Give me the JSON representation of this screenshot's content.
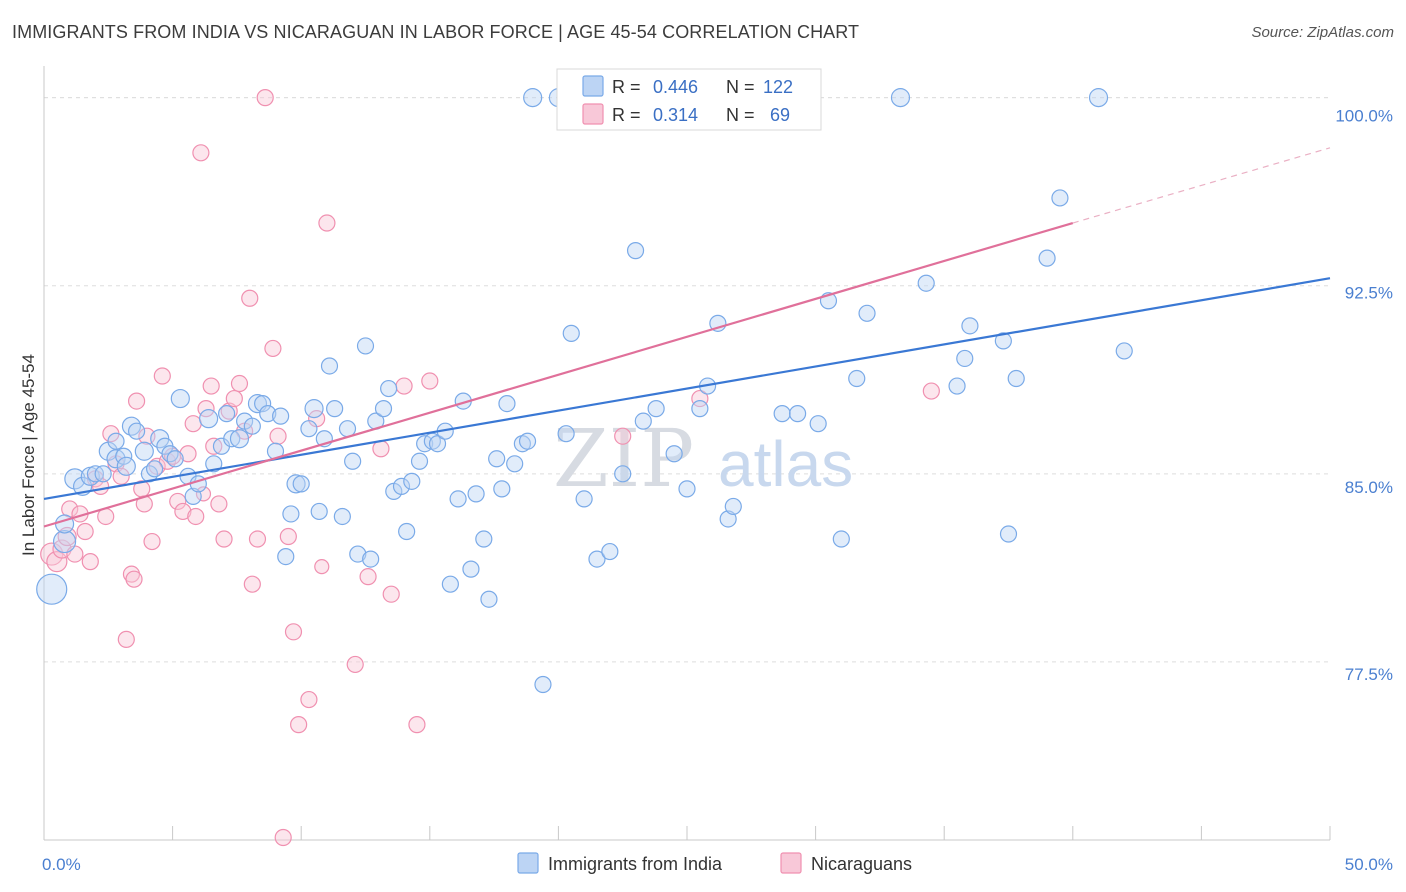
{
  "title": "IMMIGRANTS FROM INDIA VS NICARAGUAN IN LABOR FORCE | AGE 45-54 CORRELATION CHART",
  "source": "Source: ZipAtlas.com",
  "watermark": {
    "zip": "ZIP",
    "atlas": "atlas"
  },
  "legend": {
    "r_label": "R =",
    "n_label": "N =",
    "india": {
      "r": "0.446",
      "n": "122",
      "color": "#7aaae8",
      "fill": "#bcd4f4"
    },
    "nicaragua": {
      "r": "0.314",
      "n": "69",
      "color": "#f090b0",
      "fill": "#f8c8d8"
    }
  },
  "chart_data": {
    "type": "scatter",
    "xlabel": "",
    "ylabel": "In Labor Force | Age 45-54",
    "xlim": [
      0,
      50
    ],
    "ylim": [
      70.4,
      101.5
    ],
    "x_tick_labels": [
      "0.0%",
      "50.0%"
    ],
    "y_ticks": [
      77.5,
      85.0,
      92.5,
      100.0
    ],
    "y_tick_labels": [
      "77.5%",
      "85.0%",
      "92.5%",
      "100.0%"
    ],
    "legend_placement": "top-center",
    "series": [
      {
        "name": "Immigrants from India",
        "color": "#3a78d4",
        "trend": {
          "x0": 0,
          "y0": 84.0,
          "x1": 50,
          "y1": 92.8
        },
        "points": [
          [
            0.3,
            80.4,
            14
          ],
          [
            0.8,
            82.3,
            10
          ],
          [
            0.8,
            83.0,
            8
          ],
          [
            1.2,
            84.8,
            9
          ],
          [
            1.5,
            84.5,
            8
          ],
          [
            1.8,
            84.9,
            8
          ],
          [
            2.0,
            85.0,
            7
          ],
          [
            2.3,
            85.0,
            7
          ],
          [
            2.5,
            85.9,
            8
          ],
          [
            2.8,
            85.6,
            8
          ],
          [
            2.8,
            86.3,
            7
          ],
          [
            3.1,
            85.7,
            7
          ],
          [
            3.2,
            85.3,
            8
          ],
          [
            3.4,
            86.9,
            8
          ],
          [
            3.6,
            86.7,
            7
          ],
          [
            3.9,
            85.9,
            8
          ],
          [
            4.1,
            85.0,
            7
          ],
          [
            4.3,
            85.2,
            7
          ],
          [
            4.5,
            86.4,
            8
          ],
          [
            4.7,
            86.1,
            7
          ],
          [
            4.9,
            85.8,
            7
          ],
          [
            5.1,
            85.6,
            7
          ],
          [
            5.3,
            88.0,
            8
          ],
          [
            5.6,
            84.9,
            7
          ],
          [
            5.8,
            84.1,
            7
          ],
          [
            6.0,
            84.6,
            7
          ],
          [
            6.4,
            87.2,
            8
          ],
          [
            6.6,
            85.4,
            7
          ],
          [
            6.9,
            86.1,
            7
          ],
          [
            7.1,
            87.4,
            7
          ],
          [
            7.3,
            86.4,
            7
          ],
          [
            7.6,
            86.4,
            8
          ],
          [
            7.8,
            87.1,
            7
          ],
          [
            8.1,
            86.9,
            7
          ],
          [
            8.3,
            87.8,
            8
          ],
          [
            8.5,
            87.8,
            7
          ],
          [
            8.7,
            87.4,
            7
          ],
          [
            9.0,
            85.9,
            7
          ],
          [
            9.2,
            87.3,
            7
          ],
          [
            9.4,
            81.7,
            7
          ],
          [
            9.6,
            83.4,
            7
          ],
          [
            9.8,
            84.6,
            8
          ],
          [
            10.0,
            84.6,
            7
          ],
          [
            10.3,
            86.8,
            7
          ],
          [
            10.5,
            87.6,
            8
          ],
          [
            10.7,
            83.5,
            7
          ],
          [
            10.9,
            86.4,
            7
          ],
          [
            11.1,
            89.3,
            7
          ],
          [
            11.3,
            87.6,
            7
          ],
          [
            11.6,
            83.3,
            7
          ],
          [
            11.8,
            86.8,
            7
          ],
          [
            12.0,
            85.5,
            7
          ],
          [
            12.2,
            81.8,
            7
          ],
          [
            12.5,
            90.1,
            7
          ],
          [
            12.7,
            81.6,
            7
          ],
          [
            12.9,
            87.1,
            7
          ],
          [
            13.2,
            87.6,
            7
          ],
          [
            13.4,
            88.4,
            7
          ],
          [
            13.6,
            84.3,
            7
          ],
          [
            13.9,
            84.5,
            7
          ],
          [
            14.1,
            82.7,
            7
          ],
          [
            14.3,
            84.7,
            7
          ],
          [
            14.6,
            85.5,
            7
          ],
          [
            14.8,
            86.2,
            7
          ],
          [
            15.1,
            86.3,
            7
          ],
          [
            15.3,
            86.2,
            7
          ],
          [
            15.6,
            86.7,
            7
          ],
          [
            15.8,
            80.6,
            7
          ],
          [
            16.1,
            84.0,
            7
          ],
          [
            16.3,
            87.9,
            7
          ],
          [
            16.6,
            81.2,
            7
          ],
          [
            16.8,
            84.2,
            7
          ],
          [
            17.1,
            82.4,
            7
          ],
          [
            17.3,
            80.0,
            7
          ],
          [
            17.6,
            85.6,
            7
          ],
          [
            17.8,
            84.4,
            7
          ],
          [
            18.0,
            87.8,
            7
          ],
          [
            18.3,
            85.4,
            7
          ],
          [
            18.6,
            86.2,
            7
          ],
          [
            18.8,
            86.3,
            7
          ],
          [
            19.0,
            100.0,
            8
          ],
          [
            19.4,
            76.6,
            7
          ],
          [
            20.0,
            100.0,
            8
          ],
          [
            20.3,
            86.6,
            7
          ],
          [
            20.5,
            90.6,
            7
          ],
          [
            21.0,
            84.0,
            7
          ],
          [
            21.5,
            81.6,
            7
          ],
          [
            22.0,
            81.9,
            7
          ],
          [
            22.5,
            85.0,
            7
          ],
          [
            23.0,
            93.9,
            7
          ],
          [
            23.3,
            87.1,
            7
          ],
          [
            23.8,
            87.6,
            7
          ],
          [
            24.5,
            85.8,
            7
          ],
          [
            25.0,
            84.4,
            7
          ],
          [
            25.5,
            87.6,
            7
          ],
          [
            25.8,
            88.5,
            7
          ],
          [
            26.2,
            91.0,
            7
          ],
          [
            26.6,
            83.2,
            7
          ],
          [
            26.8,
            83.7,
            7
          ],
          [
            27.0,
            100.0,
            8
          ],
          [
            28.7,
            87.4,
            7
          ],
          [
            29.3,
            87.4,
            7
          ],
          [
            30.1,
            87.0,
            7
          ],
          [
            30.5,
            91.9,
            7
          ],
          [
            31.0,
            82.4,
            7
          ],
          [
            31.6,
            88.8,
            7
          ],
          [
            32.0,
            91.4,
            7
          ],
          [
            33.3,
            100.0,
            8
          ],
          [
            34.3,
            92.6,
            7
          ],
          [
            35.5,
            88.5,
            7
          ],
          [
            35.8,
            89.6,
            7
          ],
          [
            36.0,
            90.9,
            7
          ],
          [
            37.3,
            90.3,
            7
          ],
          [
            37.5,
            82.6,
            7
          ],
          [
            37.8,
            88.8,
            7
          ],
          [
            39.0,
            93.6,
            7
          ],
          [
            39.5,
            96.0,
            7
          ],
          [
            41.0,
            100.0,
            8
          ],
          [
            42.0,
            89.9,
            7
          ],
          [
            23.5,
            100.0,
            8
          ]
        ]
      },
      {
        "name": "Nicaraguans",
        "color": "#e0709a",
        "trend": {
          "x0": 0,
          "y0": 82.9,
          "x1": 40,
          "y1": 95.0
        },
        "trend_dash": {
          "x0": 40,
          "y0": 95.0,
          "x1": 50,
          "y1": 98.0
        },
        "points": [
          [
            0.3,
            81.8,
            10
          ],
          [
            0.5,
            81.5,
            9
          ],
          [
            0.7,
            82.0,
            8
          ],
          [
            0.9,
            82.5,
            8
          ],
          [
            1.0,
            83.6,
            7
          ],
          [
            1.2,
            81.8,
            7
          ],
          [
            1.4,
            83.4,
            7
          ],
          [
            1.6,
            82.7,
            7
          ],
          [
            1.8,
            81.5,
            7
          ],
          [
            2.0,
            84.8,
            7
          ],
          [
            2.2,
            84.5,
            7
          ],
          [
            2.4,
            83.3,
            7
          ],
          [
            2.6,
            86.6,
            7
          ],
          [
            2.8,
            85.4,
            7
          ],
          [
            3.0,
            84.9,
            7
          ],
          [
            3.2,
            78.4,
            7
          ],
          [
            3.4,
            81.0,
            7
          ],
          [
            3.5,
            80.8,
            7
          ],
          [
            3.6,
            87.9,
            7
          ],
          [
            3.8,
            84.4,
            7
          ],
          [
            3.9,
            83.8,
            7
          ],
          [
            4.0,
            86.5,
            7
          ],
          [
            4.2,
            82.3,
            7
          ],
          [
            4.4,
            85.3,
            7
          ],
          [
            4.6,
            88.9,
            7
          ],
          [
            4.8,
            85.5,
            7
          ],
          [
            5.0,
            85.7,
            7
          ],
          [
            5.2,
            83.9,
            7
          ],
          [
            5.4,
            83.5,
            7
          ],
          [
            5.6,
            85.8,
            7
          ],
          [
            5.8,
            87.0,
            7
          ],
          [
            5.9,
            83.3,
            7
          ],
          [
            6.1,
            97.8,
            7
          ],
          [
            6.3,
            87.6,
            7
          ],
          [
            6.5,
            88.5,
            7
          ],
          [
            6.6,
            86.1,
            7
          ],
          [
            6.8,
            83.8,
            7
          ],
          [
            7.0,
            82.4,
            7
          ],
          [
            7.2,
            87.5,
            7
          ],
          [
            7.4,
            88.0,
            7
          ],
          [
            7.6,
            88.6,
            7
          ],
          [
            7.8,
            86.7,
            7
          ],
          [
            8.0,
            92.0,
            7
          ],
          [
            8.1,
            80.6,
            7
          ],
          [
            8.3,
            82.4,
            7
          ],
          [
            8.6,
            100.0,
            7
          ],
          [
            8.9,
            90.0,
            7
          ],
          [
            9.1,
            86.5,
            7
          ],
          [
            9.3,
            70.5,
            7
          ],
          [
            9.5,
            82.5,
            7
          ],
          [
            9.7,
            78.7,
            7
          ],
          [
            9.9,
            75.0,
            7
          ],
          [
            10.3,
            76.0,
            7
          ],
          [
            10.6,
            87.2,
            7
          ],
          [
            11.0,
            95.0,
            7
          ],
          [
            12.1,
            77.4,
            7
          ],
          [
            12.6,
            80.9,
            7
          ],
          [
            13.1,
            86.0,
            7
          ],
          [
            13.5,
            80.2,
            7
          ],
          [
            14.0,
            88.5,
            7
          ],
          [
            14.5,
            75.0,
            7
          ],
          [
            15.0,
            88.7,
            7
          ],
          [
            20.5,
            100.0,
            7
          ],
          [
            21.5,
            100.0,
            7
          ],
          [
            22.5,
            86.5,
            7
          ],
          [
            25.5,
            88.0,
            7
          ],
          [
            34.5,
            88.3,
            7
          ],
          [
            10.8,
            81.3,
            6
          ],
          [
            6.2,
            84.2,
            6
          ]
        ]
      }
    ]
  }
}
